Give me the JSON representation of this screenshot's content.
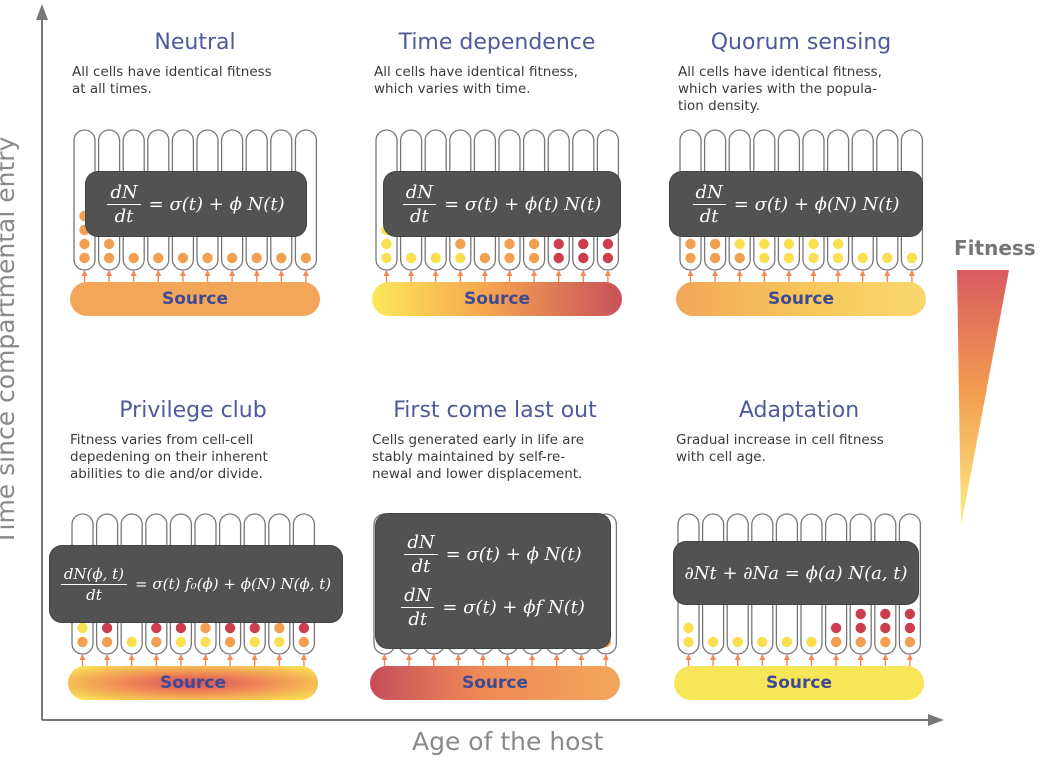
{
  "axes": {
    "x_label": "Age of the host",
    "y_label": "Time since compartmental entry"
  },
  "legend": {
    "label": "Fitness",
    "gradient_top": "#d95a60",
    "gradient_bottom": "#fbe85a"
  },
  "colors": {
    "title": "#4e5b99",
    "source_label": "#3e4a93",
    "equation_box": "#525252",
    "cell_outline": "#777777",
    "dot_orange": "#f0a050",
    "dot_yellow": "#f8e050",
    "dot_red": "#cc3e4e"
  },
  "panels": [
    {
      "id": "neutral",
      "title": "Neutral",
      "description": "All cells have identical fitness\nat all times.",
      "source_label": "Source",
      "source_style": "uniform-orange",
      "equation_lines": [
        {
          "num": "dN",
          "den": "dt",
          "rhs": "= σ(t) + ϕ N(t)"
        }
      ]
    },
    {
      "id": "time-dependence",
      "title": "Time dependence",
      "description": "All cells have identical fitness,\nwhich varies with time.",
      "source_label": "Source",
      "source_style": "yellow-to-red",
      "equation_lines": [
        {
          "num": "dN",
          "den": "dt",
          "rhs": "= σ(t) + ϕ(t) N(t)"
        }
      ]
    },
    {
      "id": "quorum-sensing",
      "title": "Quorum sensing",
      "description": "All cells have identical fitness,\nwhich varies with the popula-\ntion density.",
      "source_label": "Source",
      "source_style": "orange-yellow",
      "equation_lines": [
        {
          "num": "dN",
          "den": "dt",
          "rhs": "= σ(t) + ϕ(N) N(t)"
        }
      ]
    },
    {
      "id": "privilege-club",
      "title": "Privilege club",
      "description": "Fitness varies from cell-cell\ndepedening on their inherent\nabilities to die and/or divide.",
      "source_label": "Source",
      "source_style": "red-core",
      "equation_lines": [
        {
          "num": "dN(ϕ, t)",
          "den": "dt",
          "rhs": "= σ(t) f₀(ϕ) + ϕ(N) N(ϕ, t)"
        }
      ]
    },
    {
      "id": "first-come-last-out",
      "title": "First come last out",
      "description": "Cells generated early in life are\nstably maintained by self-re-\nnewal and lower displacement.",
      "source_label": "Source",
      "source_style": "red-to-orange",
      "equation_lines": [
        {
          "num": "dN",
          "den": "dt",
          "rhs": "= σ(t) + ϕ N(t)"
        },
        {
          "num": "dN",
          "den": "dt",
          "rhs": "= σ(t) + ϕf N(t)"
        }
      ]
    },
    {
      "id": "adaptation",
      "title": "Adaptation",
      "description": "Gradual increase in cell fitness\nwith cell age.",
      "source_label": "Source",
      "source_style": "uniform-yellow",
      "equation_lines": [
        {
          "num": "",
          "den": "",
          "rhs": "∂Nt + ∂Na = ϕ(a) N(a, t)"
        }
      ]
    }
  ]
}
